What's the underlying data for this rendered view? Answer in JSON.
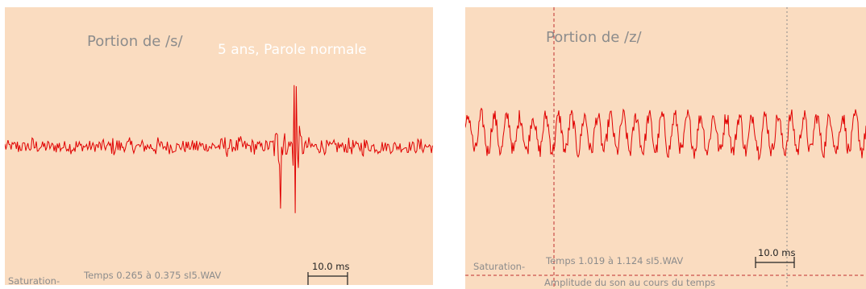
{
  "colors": {
    "background": "#fadcc0",
    "waveform": "#e00000",
    "label_text": "#8c8c8c",
    "scale_bar": "#222222",
    "subtitle_text": "#ffffff",
    "cursor": "#c03030"
  },
  "chart_data": [
    {
      "type": "line",
      "title": "Portion de /s/",
      "subtitle": "5 ans, Parole normale",
      "saturation_label": "Saturation-",
      "time_label": "Temps 0.265 à 0.375 sI5.WAV",
      "scale_bar_label": "10.0 ms",
      "xlim": [
        0.265,
        0.375
      ],
      "signal": "noise-like fricative waveform, dense high-frequency oscillation with an isolated large spike near 0.32 s",
      "series": [
        {
          "values": [
            0.14,
            -0.16,
            0.22,
            -0.12,
            0.18,
            -0.2,
            0.1,
            -0.15,
            0.26,
            -0.18,
            0.12,
            -0.22,
            0.15,
            -0.1,
            0.2,
            -0.14,
            0.3,
            -0.25,
            0.16,
            -0.12,
            0.95,
            -1.0,
            0.2,
            -0.18,
            0.14,
            -0.2,
            0.22,
            -0.16,
            0.12,
            -0.14,
            0.18,
            -0.12
          ]
        }
      ]
    },
    {
      "type": "line",
      "title": "Portion de /z/",
      "saturation_label": "Saturation-",
      "time_label": "Temps 1.019 à 1.124 sI5.WAV",
      "scale_bar_label": "10.0 ms",
      "footer_label": "Amplitude du son au cours du temps",
      "xlim": [
        1.019,
        1.124
      ],
      "signal": "voiced fricative waveform, quasi-periodic oscillation with superimposed noise",
      "series": [
        {
          "values": [
            0.2,
            -0.3,
            0.35,
            -0.25,
            0.3,
            -0.35,
            0.28,
            -0.3,
            0.4,
            -0.28,
            0.32,
            -0.3,
            0.35,
            -0.32,
            0.3,
            -0.28
          ]
        }
      ]
    }
  ]
}
